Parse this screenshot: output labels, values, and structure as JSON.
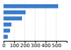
{
  "chart_data": {
    "type": "bar",
    "orientation": "horizontal",
    "categories": [
      null,
      null,
      null,
      null,
      null,
      null
    ],
    "values": [
      519,
      209,
      175,
      75,
      62,
      40
    ],
    "color": "#3a7dc9",
    "xlim": [
      0,
      600
    ],
    "xticks": [
      0,
      100,
      200,
      300,
      400,
      500
    ],
    "grid": true,
    "tick_labels": "x"
  }
}
